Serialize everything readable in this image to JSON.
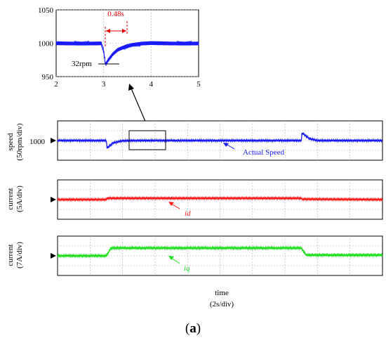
{
  "caption": {
    "prefix": "(",
    "letter": "a",
    "suffix": ")"
  },
  "time_label": {
    "line1": "time",
    "line2": "(2s/div)"
  },
  "colors": {
    "speed": "#1a1aff",
    "id": "#ff1a1a",
    "iq": "#1adf1a",
    "annot": "#e00000",
    "grid": "#b0b0b0",
    "frame": "#000000"
  },
  "chart_data": [
    {
      "type": "line",
      "panel": "zoom-inset",
      "xlim": [
        2,
        5
      ],
      "ylim": [
        950,
        1050
      ],
      "xticks": [
        "2",
        "3",
        "4",
        "5"
      ],
      "yticks": [
        "1050",
        "1000",
        "950"
      ],
      "annotations": {
        "duration": "0.48s",
        "dip": "32rpm"
      },
      "series": [
        {
          "color": "#1a1aff",
          "x": [
            2.0,
            2.5,
            2.95,
            3.0,
            3.04,
            3.1,
            3.2,
            3.3,
            3.48,
            3.6,
            3.8,
            4.0,
            4.5,
            5.0
          ],
          "y": [
            1000,
            1000,
            1000,
            988,
            968,
            975,
            984,
            990,
            995,
            997,
            999,
            1000,
            1000,
            1000
          ]
        }
      ]
    },
    {
      "type": "line",
      "panel": "speed",
      "ylabel": {
        "line1": "speed",
        "line2": "(50rpm/div)"
      },
      "marker_value": "1000",
      "legend": "Actual Speed",
      "series": [
        {
          "color": "#1a1aff",
          "x": [
            0,
            3.0,
            3.05,
            3.4,
            4.0,
            4.6,
            15.0,
            15.05,
            15.5,
            16.0,
            20
          ],
          "y": [
            1000,
            1000,
            968,
            990,
            999,
            1000,
            1000,
            1032,
            1008,
            1000,
            1000
          ]
        }
      ]
    },
    {
      "type": "line",
      "panel": "id",
      "ylabel": {
        "line1": "current",
        "line2": "(5A/div)"
      },
      "legend": "id",
      "series": [
        {
          "color": "#ff1a1a",
          "x": [
            0,
            3.0,
            3.05,
            15.0,
            15.05,
            20
          ],
          "y": [
            0,
            0,
            0.6,
            0.6,
            0.2,
            0
          ]
        }
      ]
    },
    {
      "type": "line",
      "panel": "iq",
      "ylabel": {
        "line1": "current",
        "line2": "(7A/div)"
      },
      "legend": "iq",
      "series": [
        {
          "color": "#1adf1a",
          "x": [
            0,
            3.0,
            3.3,
            15.0,
            15.3,
            20
          ],
          "y": [
            0,
            0,
            1.6,
            1.6,
            0.15,
            0.15
          ]
        }
      ]
    }
  ]
}
